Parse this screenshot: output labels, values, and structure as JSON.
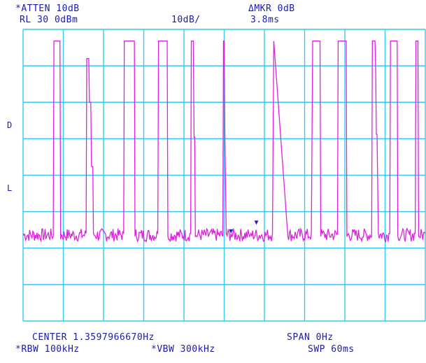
{
  "header": {
    "atten": "*ATTEN 10dB",
    "ref_level": "RL 30 0dBm",
    "scale": "10dB/",
    "marker_label": "ΔMKR 0dB",
    "marker_value": "3.8ms"
  },
  "side_markers": {
    "d": "D",
    "l": "L"
  },
  "footer": {
    "center": "CENTER 1.3597966670Hz",
    "span": "SPAN 0Hz",
    "rbw": "*RBW 100kHz",
    "vbw": "*VBW 300kHz",
    "sweep": "SWP 60ms"
  },
  "colors": {
    "grid": "#33ccee",
    "trace": "#e020e0",
    "text": "#1a1ab0",
    "marker": "#2020c0"
  },
  "chart_data": {
    "type": "line",
    "title": "",
    "xlabel": "",
    "ylabel": "",
    "x_unit": "ms",
    "y_unit": "dBm",
    "xlim": [
      0,
      60
    ],
    "ylim": [
      -70,
      30
    ],
    "grid": true,
    "grid_divisions": {
      "x": 10,
      "y": 8
    },
    "series": [
      {
        "name": "",
        "points": [
          [
            0.0,
            -40
          ],
          [
            4.5,
            -41
          ],
          [
            4.6,
            26
          ],
          [
            5.5,
            26
          ],
          [
            5.6,
            -42
          ],
          [
            9.4,
            -40
          ],
          [
            9.5,
            20
          ],
          [
            9.8,
            20
          ],
          [
            9.9,
            5
          ],
          [
            10.1,
            5
          ],
          [
            10.2,
            -17
          ],
          [
            10.4,
            -17
          ],
          [
            10.5,
            -40
          ],
          [
            15.0,
            -40
          ],
          [
            15.1,
            26
          ],
          [
            16.6,
            26
          ],
          [
            16.7,
            -41
          ],
          [
            20.1,
            -40
          ],
          [
            20.2,
            26
          ],
          [
            21.5,
            26
          ],
          [
            21.6,
            -41
          ],
          [
            25.0,
            -40
          ],
          [
            25.1,
            26
          ],
          [
            25.4,
            26
          ],
          [
            25.5,
            -7
          ],
          [
            25.6,
            -7
          ],
          [
            25.7,
            -41
          ],
          [
            29.8,
            -41
          ],
          [
            29.9,
            26
          ],
          [
            30.0,
            26
          ],
          [
            30.1,
            -7
          ],
          [
            30.3,
            -40
          ],
          [
            31.0,
            -40
          ],
          [
            33.8,
            -41
          ],
          [
            34.0,
            -40
          ],
          [
            37.2,
            -40
          ],
          [
            37.4,
            26
          ],
          [
            39.5,
            -41
          ],
          [
            43.0,
            -40
          ],
          [
            43.2,
            26
          ],
          [
            44.3,
            26
          ],
          [
            44.4,
            -41
          ],
          [
            46.9,
            -40
          ],
          [
            47.0,
            26
          ],
          [
            48.2,
            26
          ],
          [
            48.3,
            -41
          ],
          [
            52.0,
            -41
          ],
          [
            52.1,
            26
          ],
          [
            52.5,
            26
          ],
          [
            52.6,
            15
          ],
          [
            52.7,
            -6
          ],
          [
            52.8,
            -6
          ],
          [
            53.0,
            -40
          ],
          [
            54.7,
            -40
          ],
          [
            54.8,
            26
          ],
          [
            55.8,
            26
          ],
          [
            55.9,
            -41
          ],
          [
            58.5,
            -40
          ],
          [
            58.6,
            26
          ],
          [
            58.9,
            26
          ],
          [
            59.0,
            -41
          ],
          [
            60.0,
            -40
          ]
        ]
      }
    ],
    "markers": [
      {
        "x": 31.0,
        "y": -40
      },
      {
        "x": 34.8,
        "y": -37
      }
    ]
  }
}
